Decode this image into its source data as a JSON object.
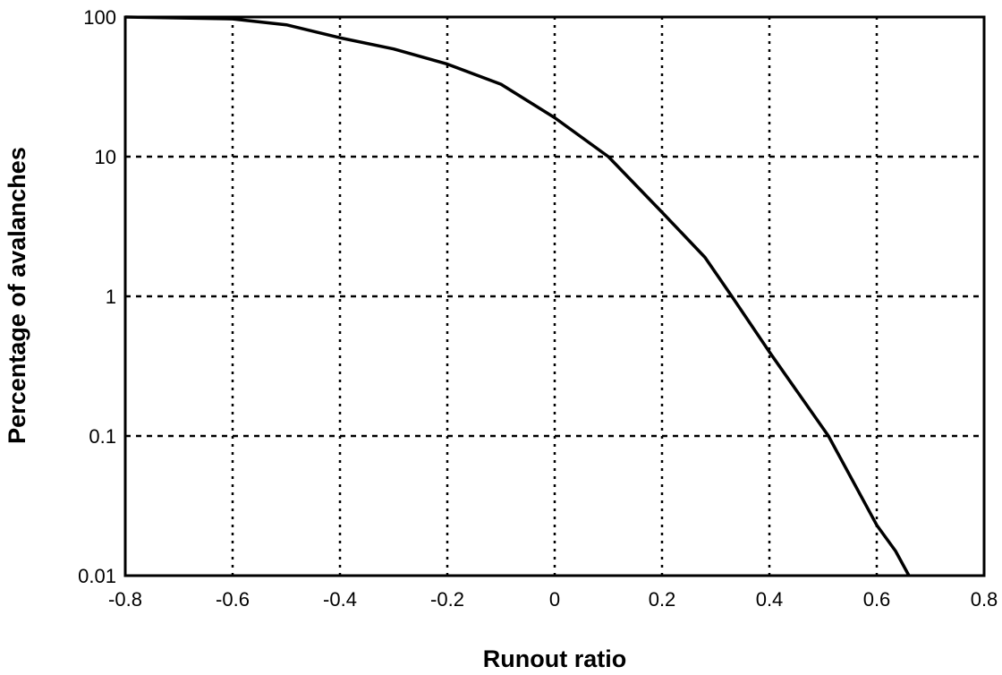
{
  "chart_data": {
    "type": "line",
    "title": "",
    "xlabel": "Runout ratio",
    "ylabel": "Percentage of avalanches",
    "xlim": [
      -0.8,
      0.8
    ],
    "ylim": [
      0.01,
      100
    ],
    "yscale": "log",
    "grid": true,
    "grid_style": "dotted",
    "xticks": [
      "-0.8",
      "-0.6",
      "-0.4",
      "-0.2",
      "0",
      "0.2",
      "0.4",
      "0.6",
      "0.8"
    ],
    "xtick_values": [
      -0.8,
      -0.6,
      -0.4,
      -0.2,
      0,
      0.2,
      0.4,
      0.6,
      0.8
    ],
    "yticks": [
      "0.01",
      "0.1",
      "1",
      "10",
      "100"
    ],
    "ytick_values": [
      0.01,
      0.1,
      1,
      10,
      100
    ],
    "series": [
      {
        "color": "#000000",
        "x": [
          -0.8,
          -0.6,
          -0.5,
          -0.4,
          -0.3,
          -0.2,
          -0.1,
          0,
          0.1,
          0.2,
          0.28,
          0.33,
          0.4,
          0.51,
          0.6,
          0.635,
          0.66
        ],
        "y": [
          100,
          97,
          88,
          71,
          59,
          46,
          33,
          19,
          10,
          4.0,
          1.9,
          1.0,
          0.4,
          0.1,
          0.023,
          0.015,
          0.01
        ]
      }
    ]
  }
}
